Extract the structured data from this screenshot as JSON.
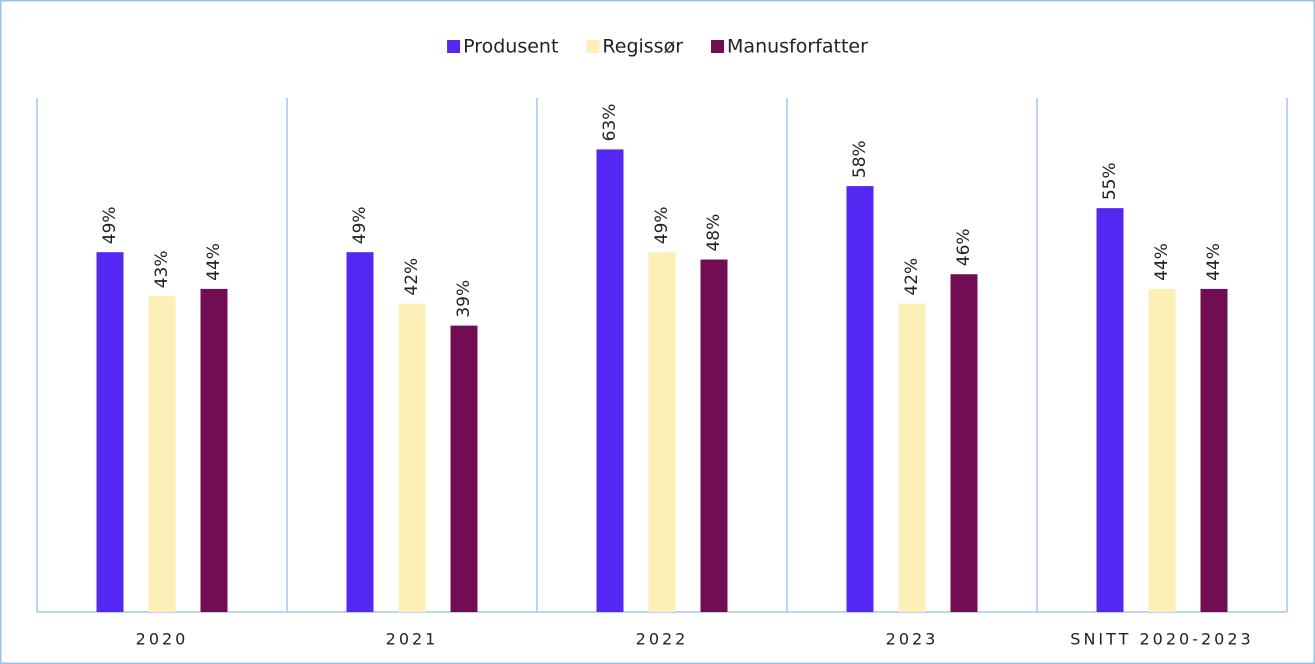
{
  "chart_data": {
    "type": "bar",
    "categories": [
      "2020",
      "2021",
      "2022",
      "2023",
      "SNITT 2020-2023"
    ],
    "series": [
      {
        "name": "Produsent",
        "color": "#5427f3",
        "values": [
          49,
          49,
          63,
          58,
          55
        ],
        "value_labels": [
          "49%",
          "49%",
          "63%",
          "58%",
          "55%"
        ]
      },
      {
        "name": "Regissør",
        "color": "#fcf0b6",
        "values": [
          43,
          42,
          49,
          42,
          44
        ],
        "value_labels": [
          "43%",
          "42%",
          "49%",
          "42%",
          "44%"
        ]
      },
      {
        "name": "Manusforfatter",
        "color": "#720c53",
        "values": [
          44,
          39,
          48,
          46,
          44
        ],
        "value_labels": [
          "44%",
          "39%",
          "48%",
          "46%",
          "44%"
        ]
      }
    ],
    "ylim": [
      0,
      70
    ],
    "legend": "top"
  }
}
